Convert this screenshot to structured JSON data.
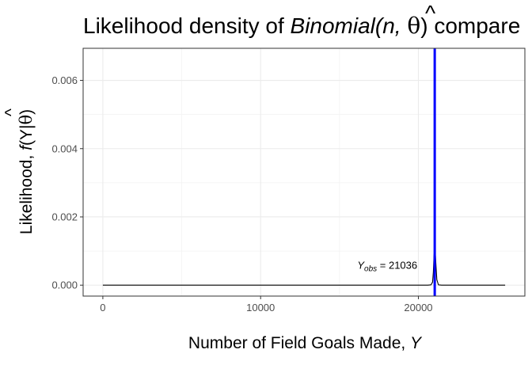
{
  "chart_data": {
    "type": "line",
    "title": {
      "prefix": "Likelihood density of ",
      "dist": "Binomial",
      "args": "(n, ",
      "hat": "^",
      "theta": "θ",
      "suffix": ") compare"
    },
    "xlabel": {
      "text": "Number of Field Goals Made, ",
      "var": "Y"
    },
    "ylabel": {
      "text": "Likelihood, ",
      "f": "f",
      "paren_open": "(Y|",
      "hat": "^",
      "theta": "θ",
      "paren_close": ")"
    },
    "xlim": [
      -1250,
      26750
    ],
    "ylim": [
      -0.00032,
      0.00694
    ],
    "x_ticks": [
      0,
      10000,
      20000
    ],
    "x_tick_labels": [
      "0",
      "10000",
      "20000"
    ],
    "y_ticks": [
      0.0,
      0.002,
      0.004,
      0.006
    ],
    "y_tick_labels": [
      "0.000",
      "0.002",
      "0.004",
      "0.006"
    ],
    "grid": true,
    "series": [
      {
        "color": "#000000",
        "x": [
          0,
          20600,
          20800,
          20900,
          20950,
          20990,
          21036,
          21080,
          21120,
          21170,
          21270,
          21470,
          25500
        ],
        "y": [
          0,
          0,
          1e-05,
          9e-05,
          0.00039,
          0.00085,
          0.00108,
          0.00087,
          0.00054,
          0.00016,
          1e-05,
          0,
          0
        ]
      }
    ],
    "vline": {
      "x": 21036,
      "color": "#0000ff"
    },
    "annotation": {
      "var": "Y",
      "sub": "obs",
      "text": " = 21036",
      "x": 21036,
      "y": 0.00048
    }
  }
}
